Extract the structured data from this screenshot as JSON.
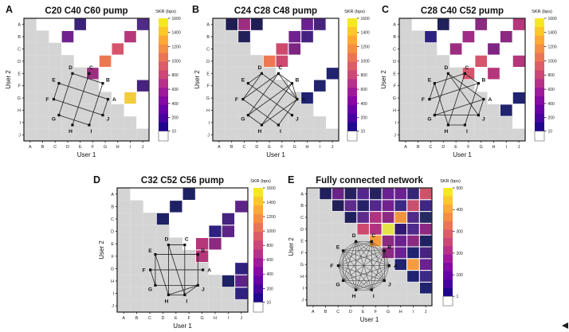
{
  "figure": {
    "colorbar_label": "SKR (bps)",
    "x_axis_label": "User 1",
    "y_axis_label": "User 2",
    "users": [
      "A",
      "B",
      "C",
      "D",
      "E",
      "F",
      "G",
      "H",
      "I",
      "J"
    ],
    "colormap_stops": [
      "#0d0887",
      "#41049d",
      "#6a00a8",
      "#8f0da4",
      "#b12a90",
      "#cc4778",
      "#e16462",
      "#f2844b",
      "#fca636",
      "#fcce25",
      "#f0f921"
    ],
    "masked_cell_color": "#d4d4d4",
    "empty_cell_color": "#ffffff",
    "no_key_segment_color": "#ffffff"
  },
  "chart_data": [
    {
      "type": "heatmap",
      "panel": "A",
      "title": "C20 C40 C60 pump",
      "xlabel": "User 1",
      "ylabel": "User 2",
      "x_categories": [
        "A",
        "B",
        "C",
        "D",
        "E",
        "F",
        "G",
        "H",
        "I",
        "J"
      ],
      "y_categories": [
        "A",
        "B",
        "C",
        "D",
        "E",
        "F",
        "G",
        "H",
        "I",
        "J"
      ],
      "colorbar": {
        "label": "SKR (bps)",
        "min": 10,
        "max": 1600,
        "ticks": [
          1600,
          1400,
          1200,
          1000,
          800,
          600,
          400,
          200,
          10
        ]
      },
      "cells": [
        {
          "user2": "A",
          "user1": "E",
          "skr": 210,
          "color": "#3b2379"
        },
        {
          "user2": "A",
          "user1": "J",
          "skr": 330,
          "color": "#4f2a87"
        },
        {
          "user2": "B",
          "user1": "D",
          "skr": 480,
          "color": "#72228d"
        },
        {
          "user2": "B",
          "user1": "I",
          "skr": 760,
          "color": "#b5367a"
        },
        {
          "user2": "C",
          "user1": "H",
          "skr": 930,
          "color": "#d6556d"
        },
        {
          "user2": "D",
          "user1": "G",
          "skr": 1090,
          "color": "#ed7953"
        },
        {
          "user2": "E",
          "user1": "F",
          "skr": 620,
          "color": "#9c2e7f"
        },
        {
          "user2": "F",
          "user1": "J",
          "skr": 300,
          "color": "#46237e"
        },
        {
          "user2": "G",
          "user1": "I",
          "skr": 1430,
          "color": "#f3cc3e"
        }
      ]
    },
    {
      "type": "heatmap",
      "panel": "B",
      "title": "C24 C28 C48 pump",
      "xlabel": "User 1",
      "ylabel": "User 2",
      "x_categories": [
        "A",
        "B",
        "C",
        "D",
        "E",
        "F",
        "G",
        "H",
        "I",
        "J"
      ],
      "y_categories": [
        "A",
        "B",
        "C",
        "D",
        "E",
        "F",
        "G",
        "H",
        "I",
        "J"
      ],
      "colorbar": {
        "label": "SKR (bps)",
        "min": 10,
        "max": 1600,
        "ticks": [
          1600,
          1400,
          1200,
          1000,
          800,
          600,
          400,
          200,
          10
        ]
      },
      "cells": [
        {
          "user2": "A",
          "user1": "B",
          "skr": 80,
          "color": "#201d55"
        },
        {
          "user2": "A",
          "user1": "C",
          "skr": 620,
          "color": "#9c2e7f"
        },
        {
          "user2": "A",
          "user1": "D",
          "skr": 80,
          "color": "#201d55"
        },
        {
          "user2": "A",
          "user1": "H",
          "skr": 420,
          "color": "#6a2290"
        },
        {
          "user2": "A",
          "user1": "I",
          "skr": 300,
          "color": "#46237e"
        },
        {
          "user2": "B",
          "user1": "C",
          "skr": 85,
          "color": "#232058"
        },
        {
          "user2": "B",
          "user1": "G",
          "skr": 480,
          "color": "#72228d"
        },
        {
          "user2": "B",
          "user1": "H",
          "skr": 300,
          "color": "#46237e"
        },
        {
          "user2": "C",
          "user1": "F",
          "skr": 880,
          "color": "#cd4a6e"
        },
        {
          "user2": "C",
          "user1": "G",
          "skr": 520,
          "color": "#7e2482"
        },
        {
          "user2": "D",
          "user1": "E",
          "skr": 1090,
          "color": "#ed7953"
        },
        {
          "user2": "D",
          "user1": "F",
          "skr": 880,
          "color": "#cd4a6e"
        },
        {
          "user2": "E",
          "user1": "J",
          "skr": 110,
          "color": "#1f2370"
        },
        {
          "user2": "F",
          "user1": "I",
          "skr": 110,
          "color": "#1f2370"
        },
        {
          "user2": "G",
          "user1": "H",
          "skr": 110,
          "color": "#1f2370"
        }
      ]
    },
    {
      "type": "heatmap",
      "panel": "C",
      "title": "C28 C40 C52 pump",
      "xlabel": "User 1",
      "ylabel": "User 2",
      "x_categories": [
        "A",
        "B",
        "C",
        "D",
        "E",
        "F",
        "G",
        "H",
        "I",
        "J"
      ],
      "y_categories": [
        "A",
        "B",
        "C",
        "D",
        "E",
        "F",
        "G",
        "H",
        "I",
        "J"
      ],
      "colorbar": {
        "label": "SKR (bps)",
        "min": 10,
        "max": 1600,
        "ticks": [
          1600,
          1400,
          1200,
          1000,
          800,
          600,
          400,
          200,
          10
        ]
      },
      "cells": [
        {
          "user2": "A",
          "user1": "D",
          "skr": 80,
          "color": "#20205c"
        },
        {
          "user2": "A",
          "user1": "G",
          "skr": 560,
          "color": "#8c2981"
        },
        {
          "user2": "A",
          "user1": "J",
          "skr": 760,
          "color": "#b5367a"
        },
        {
          "user2": "B",
          "user1": "C",
          "skr": 160,
          "color": "#2e2180"
        },
        {
          "user2": "B",
          "user1": "F",
          "skr": 650,
          "color": "#a02c85"
        },
        {
          "user2": "B",
          "user1": "I",
          "skr": 560,
          "color": "#8c2981"
        },
        {
          "user2": "C",
          "user1": "E",
          "skr": 620,
          "color": "#9c2e7f"
        },
        {
          "user2": "C",
          "user1": "H",
          "skr": 520,
          "color": "#7e2482"
        },
        {
          "user2": "D",
          "user1": "G",
          "skr": 930,
          "color": "#d6556d"
        },
        {
          "user2": "D",
          "user1": "J",
          "skr": 760,
          "color": "#b5367a"
        },
        {
          "user2": "E",
          "user1": "F",
          "skr": 930,
          "color": "#d6556d"
        },
        {
          "user2": "E",
          "user1": "H",
          "skr": 760,
          "color": "#b5367a"
        },
        {
          "user2": "G",
          "user1": "J",
          "skr": 110,
          "color": "#1f2370"
        },
        {
          "user2": "H",
          "user1": "I",
          "skr": 110,
          "color": "#1f2370"
        }
      ]
    },
    {
      "type": "heatmap",
      "panel": "D",
      "title": "C32 C52 C56 pump",
      "xlabel": "User 1",
      "ylabel": "User 2",
      "x_categories": [
        "A",
        "B",
        "C",
        "D",
        "E",
        "F",
        "G",
        "H",
        "I",
        "J"
      ],
      "y_categories": [
        "A",
        "B",
        "C",
        "D",
        "E",
        "F",
        "G",
        "H",
        "I",
        "J"
      ],
      "colorbar": {
        "label": "SKR (bps)",
        "min": 10,
        "max": 1600,
        "ticks": [
          1600,
          1400,
          1200,
          1000,
          800,
          600,
          400,
          200,
          10
        ]
      },
      "cells": [
        {
          "user2": "A",
          "user1": "F",
          "skr": 95,
          "color": "#1f2165"
        },
        {
          "user2": "B",
          "user1": "E",
          "skr": 95,
          "color": "#1f2165"
        },
        {
          "user2": "B",
          "user1": "J",
          "skr": 380,
          "color": "#5e2387"
        },
        {
          "user2": "C",
          "user1": "D",
          "skr": 95,
          "color": "#1f2165"
        },
        {
          "user2": "C",
          "user1": "I",
          "skr": 300,
          "color": "#46237e"
        },
        {
          "user2": "D",
          "user1": "H",
          "skr": 160,
          "color": "#2e2180"
        },
        {
          "user2": "D",
          "user1": "I",
          "skr": 380,
          "color": "#5e2387"
        },
        {
          "user2": "E",
          "user1": "G",
          "skr": 760,
          "color": "#b5367a"
        },
        {
          "user2": "E",
          "user1": "H",
          "skr": 560,
          "color": "#8c2981"
        },
        {
          "user2": "F",
          "user1": "G",
          "skr": 760,
          "color": "#b5367a"
        },
        {
          "user2": "G",
          "user1": "J",
          "skr": 160,
          "color": "#2e2180"
        },
        {
          "user2": "H",
          "user1": "I",
          "skr": 95,
          "color": "#1f2165"
        },
        {
          "user2": "H",
          "user1": "J",
          "skr": 380,
          "color": "#5e2387"
        },
        {
          "user2": "I",
          "user1": "J",
          "skr": 160,
          "color": "#2e2180"
        }
      ]
    },
    {
      "type": "heatmap",
      "panel": "E",
      "title": "Fully connected network",
      "xlabel": "User 1",
      "ylabel": "User 2",
      "x_categories": [
        "A",
        "B",
        "C",
        "D",
        "E",
        "F",
        "G",
        "H",
        "I",
        "J"
      ],
      "y_categories": [
        "A",
        "B",
        "C",
        "D",
        "E",
        "F",
        "G",
        "H",
        "I",
        "J"
      ],
      "colorbar": {
        "label": "SKR (bps)",
        "min": 1,
        "max": 500,
        "ticks": [
          500,
          400,
          300,
          200,
          100,
          1
        ]
      },
      "cells": [
        {
          "user2": "A",
          "user1": "B",
          "skr": 20,
          "color": "#20205f"
        },
        {
          "user2": "A",
          "user1": "C",
          "skr": 115,
          "color": "#6b2286"
        },
        {
          "user2": "A",
          "user1": "D",
          "skr": 30,
          "color": "#28215f"
        },
        {
          "user2": "A",
          "user1": "E",
          "skr": 85,
          "color": "#54278c"
        },
        {
          "user2": "A",
          "user1": "F",
          "skr": 25,
          "color": "#252162"
        },
        {
          "user2": "A",
          "user1": "G",
          "skr": 110,
          "color": "#6a2290"
        },
        {
          "user2": "A",
          "user1": "H",
          "skr": 110,
          "color": "#6a2290"
        },
        {
          "user2": "A",
          "user1": "I",
          "skr": 50,
          "color": "#372576"
        },
        {
          "user2": "A",
          "user1": "J",
          "skr": 280,
          "color": "#cd5468"
        },
        {
          "user2": "B",
          "user1": "C",
          "skr": 22,
          "color": "#232058"
        },
        {
          "user2": "B",
          "user1": "D",
          "skr": 95,
          "color": "#5e2b8a"
        },
        {
          "user2": "B",
          "user1": "E",
          "skr": 27,
          "color": "#262265"
        },
        {
          "user2": "B",
          "user1": "F",
          "skr": 85,
          "color": "#54278c"
        },
        {
          "user2": "B",
          "user1": "G",
          "skr": 125,
          "color": "#72228d"
        },
        {
          "user2": "B",
          "user1": "H",
          "skr": 55,
          "color": "#3c2a84"
        },
        {
          "user2": "B",
          "user1": "I",
          "skr": 270,
          "color": "#c9506e"
        },
        {
          "user2": "B",
          "user1": "J",
          "skr": 60,
          "color": "#3f2686"
        },
        {
          "user2": "C",
          "user1": "D",
          "skr": 21,
          "color": "#20205c"
        },
        {
          "user2": "C",
          "user1": "E",
          "skr": 95,
          "color": "#5d2b8a"
        },
        {
          "user2": "C",
          "user1": "F",
          "skr": 220,
          "color": "#b03380"
        },
        {
          "user2": "C",
          "user1": "G",
          "skr": 165,
          "color": "#8c2981"
        },
        {
          "user2": "C",
          "user1": "H",
          "skr": 385,
          "color": "#f0953c"
        },
        {
          "user2": "C",
          "user1": "I",
          "skr": 75,
          "color": "#4f2a8a"
        },
        {
          "user2": "C",
          "user1": "J",
          "skr": 30,
          "color": "#262a63"
        },
        {
          "user2": "D",
          "user1": "E",
          "skr": 275,
          "color": "#cd4a6e"
        },
        {
          "user2": "D",
          "user1": "F",
          "skr": 220,
          "color": "#b03380"
        },
        {
          "user2": "D",
          "user1": "G",
          "skr": 465,
          "color": "#e5e345"
        },
        {
          "user2": "D",
          "user1": "H",
          "skr": 45,
          "color": "#32176e"
        },
        {
          "user2": "D",
          "user1": "I",
          "skr": 75,
          "color": "#4f2a8a"
        },
        {
          "user2": "D",
          "user1": "J",
          "skr": 165,
          "color": "#8c2981"
        },
        {
          "user2": "E",
          "user1": "F",
          "skr": 395,
          "color": "#f59c3c"
        },
        {
          "user2": "E",
          "user1": "G",
          "skr": 165,
          "color": "#8c2981"
        },
        {
          "user2": "E",
          "user1": "H",
          "skr": 110,
          "color": "#6a2290"
        },
        {
          "user2": "E",
          "user1": "I",
          "skr": 165,
          "color": "#8c2981"
        },
        {
          "user2": "E",
          "user1": "J",
          "skr": 15,
          "color": "#1f2165"
        },
        {
          "user2": "F",
          "user1": "G",
          "skr": 165,
          "color": "#8c2981"
        },
        {
          "user2": "F",
          "user1": "H",
          "skr": 110,
          "color": "#6a2290"
        },
        {
          "user2": "F",
          "user1": "I",
          "skr": 17,
          "color": "#1f2370"
        },
        {
          "user2": "F",
          "user1": "J",
          "skr": 65,
          "color": "#46237e"
        },
        {
          "user2": "G",
          "user1": "H",
          "skr": 17,
          "color": "#1f2370"
        },
        {
          "user2": "G",
          "user1": "I",
          "skr": 395,
          "color": "#f59c3c"
        },
        {
          "user2": "G",
          "user1": "J",
          "skr": 110,
          "color": "#6a2290"
        },
        {
          "user2": "H",
          "user1": "I",
          "skr": 17,
          "color": "#1f2370"
        },
        {
          "user2": "H",
          "user1": "J",
          "skr": 55,
          "color": "#3c2a84"
        },
        {
          "user2": "I",
          "user1": "J",
          "skr": 17,
          "color": "#1f2370"
        }
      ]
    }
  ]
}
